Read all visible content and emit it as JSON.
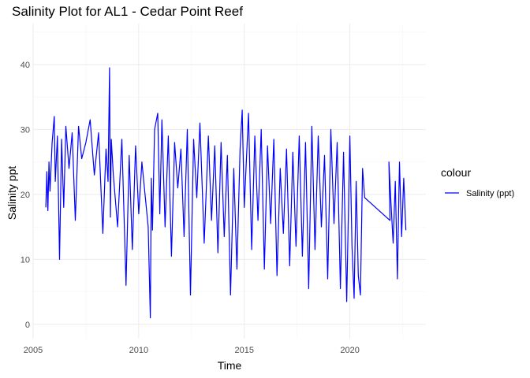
{
  "chart_data": {
    "type": "line",
    "title": "Salinity Plot for AL1 - Cedar Point Reef",
    "xlabel": "Time",
    "ylabel": "Salinity ppt",
    "xlim": [
      2005.0,
      2023.6
    ],
    "ylim": [
      -2.2,
      46.3
    ],
    "x_ticks": [
      2005,
      2010,
      2015,
      2020
    ],
    "x_tick_labels": [
      "2005",
      "2010",
      "2015",
      "2020"
    ],
    "y_ticks": [
      0,
      10,
      20,
      30,
      40
    ],
    "y_tick_labels": [
      "0",
      "10",
      "20",
      "30",
      "40"
    ],
    "grid": true,
    "legend": {
      "title": "colour",
      "position": "right",
      "entries": [
        {
          "label": "Salinity (ppt)",
          "color": "#0000ff"
        }
      ]
    },
    "series": [
      {
        "name": "Salinity (ppt)",
        "color": "#0000ff",
        "x": [
          2005.6,
          2005.65,
          2005.7,
          2005.75,
          2005.8,
          2005.9,
          2006.0,
          2006.05,
          2006.15,
          2006.25,
          2006.35,
          2006.45,
          2006.55,
          2006.7,
          2006.85,
          2007.0,
          2007.15,
          2007.3,
          2007.5,
          2007.7,
          2007.9,
          2008.1,
          2008.3,
          2008.45,
          2008.55,
          2008.62,
          2008.66,
          2008.7,
          2008.8,
          2009.0,
          2009.2,
          2009.4,
          2009.55,
          2009.7,
          2009.85,
          2010.0,
          2010.15,
          2010.3,
          2010.45,
          2010.55,
          2010.6,
          2010.65,
          2010.75,
          2010.9,
          2011.0,
          2011.1,
          2011.25,
          2011.4,
          2011.55,
          2011.7,
          2011.85,
          2012.0,
          2012.15,
          2012.3,
          2012.45,
          2012.6,
          2012.75,
          2012.9,
          2013.1,
          2013.3,
          2013.45,
          2013.6,
          2013.75,
          2013.9,
          2014.05,
          2014.2,
          2014.35,
          2014.5,
          2014.65,
          2014.8,
          2014.9,
          2015.0,
          2015.2,
          2015.35,
          2015.5,
          2015.65,
          2015.8,
          2015.95,
          2016.1,
          2016.25,
          2016.4,
          2016.55,
          2016.7,
          2016.85,
          2017.0,
          2017.15,
          2017.3,
          2017.45,
          2017.6,
          2017.75,
          2017.9,
          2018.05,
          2018.2,
          2018.35,
          2018.5,
          2018.65,
          2018.8,
          2018.95,
          2019.1,
          2019.25,
          2019.4,
          2019.55,
          2019.7,
          2019.85,
          2020.0,
          2020.1,
          2020.2,
          2020.3,
          2020.4,
          2020.5,
          2020.6,
          2020.7,
          2021.9,
          2021.85,
          2021.95,
          2022.05,
          2022.15,
          2022.25,
          2022.35,
          2022.45,
          2022.55,
          2022.65
        ],
        "y": [
          18.0,
          23.5,
          17.5,
          25.0,
          20.5,
          28.0,
          32.0,
          22.0,
          29.0,
          10.0,
          28.5,
          18.0,
          30.5,
          24.0,
          29.5,
          16.0,
          30.5,
          25.5,
          28.0,
          31.5,
          23.0,
          29.5,
          14.0,
          27.0,
          22.0,
          39.5,
          16.5,
          28.5,
          23.0,
          15.0,
          28.5,
          6.0,
          26.0,
          11.5,
          27.5,
          17.0,
          25.0,
          20.0,
          15.0,
          1.0,
          22.5,
          14.5,
          30.0,
          32.5,
          17.0,
          31.5,
          15.0,
          29.0,
          10.5,
          28.0,
          21.0,
          27.0,
          13.5,
          30.0,
          4.5,
          28.5,
          19.5,
          31.0,
          12.5,
          29.0,
          16.0,
          27.5,
          11.0,
          28.0,
          13.5,
          26.0,
          4.5,
          24.0,
          8.5,
          27.0,
          33.0,
          18.0,
          32.5,
          11.5,
          29.0,
          16.0,
          30.0,
          8.5,
          27.5,
          15.5,
          28.5,
          7.5,
          24.0,
          14.0,
          27.0,
          9.0,
          26.5,
          12.0,
          29.0,
          10.5,
          28.0,
          5.5,
          30.5,
          11.5,
          29.0,
          15.0,
          26.0,
          7.0,
          30.0,
          15.5,
          28.0,
          5.5,
          26.5,
          3.5,
          29.0,
          12.0,
          4.0,
          22.0,
          7.5,
          4.5,
          24.0,
          19.5,
          16.0,
          25.0,
          18.5,
          12.5,
          22.0,
          7.0,
          25.0,
          13.5,
          22.5,
          14.5
        ]
      }
    ]
  }
}
